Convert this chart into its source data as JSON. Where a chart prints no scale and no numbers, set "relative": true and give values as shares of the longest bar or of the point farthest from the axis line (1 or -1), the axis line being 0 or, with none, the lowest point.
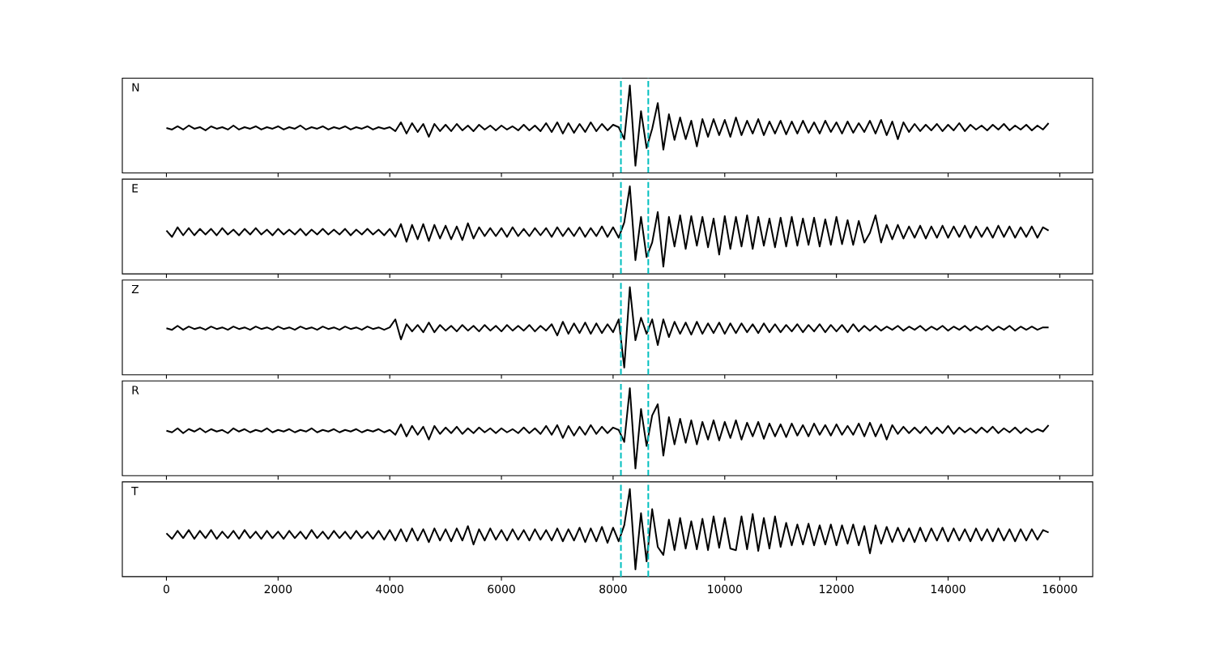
{
  "chart_data": [
    {
      "type": "line",
      "annotations": [
        "N"
      ],
      "relative": true,
      "tick_labels": false,
      "xlim": [
        -790,
        16590
      ],
      "xticks": [
        0,
        2000,
        4000,
        6000,
        8000,
        10000,
        12000,
        14000,
        16000
      ],
      "ref_lines": [
        {
          "axis": "x",
          "value": 8140,
          "color": "#00bfbf",
          "line_style": "dashed"
        },
        {
          "axis": "x",
          "value": 8630,
          "color": "#00bfbf",
          "line_style": "dashed"
        }
      ],
      "x": [
        0,
        100,
        200,
        300,
        400,
        500,
        600,
        700,
        800,
        900,
        1000,
        1100,
        1200,
        1300,
        1400,
        1500,
        1600,
        1700,
        1800,
        1900,
        2000,
        2100,
        2200,
        2300,
        2400,
        2500,
        2600,
        2700,
        2800,
        2900,
        3000,
        3100,
        3200,
        3300,
        3400,
        3500,
        3600,
        3700,
        3800,
        3900,
        4000,
        4100,
        4200,
        4300,
        4400,
        4500,
        4600,
        4700,
        4800,
        4900,
        5000,
        5100,
        5200,
        5300,
        5400,
        5500,
        5600,
        5700,
        5800,
        5900,
        6000,
        6100,
        6200,
        6300,
        6400,
        6500,
        6600,
        6700,
        6800,
        6900,
        7000,
        7100,
        7200,
        7300,
        7400,
        7500,
        7600,
        7700,
        7800,
        7900,
        8000,
        8100,
        8200,
        8300,
        8400,
        8500,
        8600,
        8700,
        8800,
        8900,
        9000,
        9100,
        9200,
        9300,
        9400,
        9500,
        9600,
        9700,
        9800,
        9900,
        10000,
        10100,
        10200,
        10300,
        10400,
        10500,
        10600,
        10700,
        10800,
        10900,
        11000,
        11100,
        11200,
        11300,
        11400,
        11500,
        11600,
        11700,
        11800,
        11900,
        12000,
        12100,
        12200,
        12300,
        12400,
        12500,
        12600,
        12700,
        12800,
        12900,
        13000,
        13100,
        13200,
        13300,
        13400,
        13500,
        13600,
        13700,
        13800,
        13900,
        14000,
        14100,
        14200,
        14300,
        14400,
        14500,
        14600,
        14700,
        14800,
        14900,
        15000,
        15100,
        15200,
        15300,
        15400,
        15500,
        15600,
        15700,
        15800
      ],
      "series": [
        {
          "color": "#000000",
          "values": [
            0.47,
            0.45,
            0.49,
            0.45,
            0.5,
            0.46,
            0.48,
            0.44,
            0.49,
            0.46,
            0.48,
            0.45,
            0.5,
            0.45,
            0.48,
            0.46,
            0.49,
            0.45,
            0.48,
            0.46,
            0.49,
            0.45,
            0.48,
            0.46,
            0.5,
            0.45,
            0.48,
            0.46,
            0.49,
            0.45,
            0.48,
            0.46,
            0.49,
            0.45,
            0.48,
            0.46,
            0.49,
            0.45,
            0.48,
            0.46,
            0.48,
            0.43,
            0.54,
            0.4,
            0.53,
            0.42,
            0.52,
            0.36,
            0.52,
            0.43,
            0.51,
            0.43,
            0.52,
            0.44,
            0.5,
            0.43,
            0.51,
            0.45,
            0.5,
            0.44,
            0.5,
            0.45,
            0.49,
            0.44,
            0.51,
            0.44,
            0.5,
            0.43,
            0.53,
            0.42,
            0.54,
            0.4,
            0.53,
            0.41,
            0.52,
            0.42,
            0.54,
            0.43,
            0.52,
            0.44,
            0.51,
            0.48,
            0.33,
            1.0,
            0.0,
            0.68,
            0.22,
            0.46,
            0.78,
            0.2,
            0.64,
            0.32,
            0.6,
            0.33,
            0.56,
            0.24,
            0.58,
            0.36,
            0.58,
            0.38,
            0.57,
            0.36,
            0.6,
            0.38,
            0.56,
            0.4,
            0.58,
            0.38,
            0.55,
            0.4,
            0.56,
            0.39,
            0.55,
            0.4,
            0.56,
            0.41,
            0.54,
            0.4,
            0.56,
            0.42,
            0.54,
            0.4,
            0.55,
            0.41,
            0.53,
            0.42,
            0.56,
            0.4,
            0.57,
            0.38,
            0.55,
            0.33,
            0.54,
            0.42,
            0.52,
            0.43,
            0.51,
            0.44,
            0.52,
            0.43,
            0.51,
            0.44,
            0.53,
            0.43,
            0.51,
            0.45,
            0.5,
            0.44,
            0.51,
            0.45,
            0.52,
            0.44,
            0.5,
            0.45,
            0.51,
            0.44,
            0.5,
            0.45,
            0.53
          ]
        }
      ]
    },
    {
      "type": "line",
      "annotations": [
        "E"
      ],
      "relative": true,
      "tick_labels": false,
      "xlim": [
        -790,
        16590
      ],
      "xticks": [
        0,
        2000,
        4000,
        6000,
        8000,
        10000,
        12000,
        14000,
        16000
      ],
      "ref_lines": [
        {
          "axis": "x",
          "value": 8140,
          "color": "#00bfbf",
          "line_style": "dashed"
        },
        {
          "axis": "x",
          "value": 8630,
          "color": "#00bfbf",
          "line_style": "dashed"
        }
      ],
      "x": [
        0,
        100,
        200,
        300,
        400,
        500,
        600,
        700,
        800,
        900,
        1000,
        1100,
        1200,
        1300,
        1400,
        1500,
        1600,
        1700,
        1800,
        1900,
        2000,
        2100,
        2200,
        2300,
        2400,
        2500,
        2600,
        2700,
        2800,
        2900,
        3000,
        3100,
        3200,
        3300,
        3400,
        3500,
        3600,
        3700,
        3800,
        3900,
        4000,
        4100,
        4200,
        4300,
        4400,
        4500,
        4600,
        4700,
        4800,
        4900,
        5000,
        5100,
        5200,
        5300,
        5400,
        5500,
        5600,
        5700,
        5800,
        5900,
        6000,
        6100,
        6200,
        6300,
        6400,
        6500,
        6600,
        6700,
        6800,
        6900,
        7000,
        7100,
        7200,
        7300,
        7400,
        7500,
        7600,
        7700,
        7800,
        7900,
        8000,
        8100,
        8200,
        8300,
        8400,
        8500,
        8600,
        8700,
        8800,
        8900,
        9000,
        9100,
        9200,
        9300,
        9400,
        9500,
        9600,
        9700,
        9800,
        9900,
        10000,
        10100,
        10200,
        10300,
        10400,
        10500,
        10600,
        10700,
        10800,
        10900,
        11000,
        11100,
        11200,
        11300,
        11400,
        11500,
        11600,
        11700,
        11800,
        11900,
        12000,
        12100,
        12200,
        12300,
        12400,
        12500,
        12600,
        12700,
        12800,
        12900,
        13000,
        13100,
        13200,
        13300,
        13400,
        13500,
        13600,
        13700,
        13800,
        13900,
        14000,
        14100,
        14200,
        14300,
        14400,
        14500,
        14600,
        14700,
        14800,
        14900,
        15000,
        15100,
        15200,
        15300,
        15400,
        15500,
        15600,
        15700,
        15800
      ],
      "series": [
        {
          "color": "#000000",
          "values": [
            0.45,
            0.37,
            0.49,
            0.39,
            0.48,
            0.39,
            0.47,
            0.4,
            0.47,
            0.39,
            0.48,
            0.4,
            0.46,
            0.39,
            0.47,
            0.4,
            0.48,
            0.4,
            0.46,
            0.39,
            0.47,
            0.4,
            0.46,
            0.4,
            0.47,
            0.39,
            0.46,
            0.4,
            0.47,
            0.4,
            0.46,
            0.4,
            0.47,
            0.39,
            0.46,
            0.4,
            0.47,
            0.4,
            0.46,
            0.39,
            0.47,
            0.37,
            0.53,
            0.31,
            0.52,
            0.34,
            0.53,
            0.32,
            0.52,
            0.35,
            0.51,
            0.34,
            0.5,
            0.33,
            0.54,
            0.35,
            0.49,
            0.38,
            0.48,
            0.38,
            0.48,
            0.37,
            0.49,
            0.38,
            0.47,
            0.38,
            0.48,
            0.39,
            0.48,
            0.37,
            0.49,
            0.38,
            0.48,
            0.38,
            0.49,
            0.37,
            0.48,
            0.38,
            0.5,
            0.37,
            0.49,
            0.36,
            0.55,
            1.0,
            0.08,
            0.62,
            0.12,
            0.3,
            0.68,
            0.0,
            0.62,
            0.25,
            0.64,
            0.22,
            0.63,
            0.26,
            0.62,
            0.24,
            0.6,
            0.15,
            0.63,
            0.22,
            0.62,
            0.25,
            0.64,
            0.22,
            0.62,
            0.26,
            0.6,
            0.24,
            0.61,
            0.25,
            0.62,
            0.26,
            0.6,
            0.27,
            0.61,
            0.25,
            0.59,
            0.27,
            0.62,
            0.28,
            0.58,
            0.27,
            0.57,
            0.3,
            0.42,
            0.64,
            0.3,
            0.52,
            0.34,
            0.52,
            0.35,
            0.5,
            0.36,
            0.51,
            0.35,
            0.5,
            0.36,
            0.51,
            0.36,
            0.5,
            0.37,
            0.51,
            0.36,
            0.5,
            0.37,
            0.49,
            0.36,
            0.51,
            0.37,
            0.5,
            0.36,
            0.49,
            0.37,
            0.5,
            0.36,
            0.49,
            0.45
          ]
        }
      ]
    },
    {
      "type": "line",
      "annotations": [
        "Z"
      ],
      "relative": true,
      "tick_labels": false,
      "xlim": [
        -790,
        16590
      ],
      "xticks": [
        0,
        2000,
        4000,
        6000,
        8000,
        10000,
        12000,
        14000,
        16000
      ],
      "ref_lines": [
        {
          "axis": "x",
          "value": 8140,
          "color": "#00bfbf",
          "line_style": "dashed"
        },
        {
          "axis": "x",
          "value": 8630,
          "color": "#00bfbf",
          "line_style": "dashed"
        }
      ],
      "x": [
        0,
        100,
        200,
        300,
        400,
        500,
        600,
        700,
        800,
        900,
        1000,
        1100,
        1200,
        1300,
        1400,
        1500,
        1600,
        1700,
        1800,
        1900,
        2000,
        2100,
        2200,
        2300,
        2400,
        2500,
        2600,
        2700,
        2800,
        2900,
        3000,
        3100,
        3200,
        3300,
        3400,
        3500,
        3600,
        3700,
        3800,
        3900,
        4000,
        4100,
        4200,
        4300,
        4400,
        4500,
        4600,
        4700,
        4800,
        4900,
        5000,
        5100,
        5200,
        5300,
        5400,
        5500,
        5600,
        5700,
        5800,
        5900,
        6000,
        6100,
        6200,
        6300,
        6400,
        6500,
        6600,
        6700,
        6800,
        6900,
        7000,
        7100,
        7200,
        7300,
        7400,
        7500,
        7600,
        7700,
        7800,
        7900,
        8000,
        8100,
        8200,
        8300,
        8400,
        8500,
        8600,
        8700,
        8800,
        8900,
        9000,
        9100,
        9200,
        9300,
        9400,
        9500,
        9600,
        9700,
        9800,
        9900,
        10000,
        10100,
        10200,
        10300,
        10400,
        10500,
        10600,
        10700,
        10800,
        10900,
        11000,
        11100,
        11200,
        11300,
        11400,
        11500,
        11600,
        11700,
        11800,
        11900,
        12000,
        12100,
        12200,
        12300,
        12400,
        12500,
        12600,
        12700,
        12800,
        12900,
        13000,
        13100,
        13200,
        13300,
        13400,
        13500,
        13600,
        13700,
        13800,
        13900,
        14000,
        14100,
        14200,
        14300,
        14400,
        14500,
        14600,
        14700,
        14800,
        14900,
        15000,
        15100,
        15200,
        15300,
        15400,
        15500,
        15600,
        15700,
        15800
      ],
      "series": [
        {
          "color": "#000000",
          "values": [
            0.49,
            0.47,
            0.52,
            0.47,
            0.51,
            0.48,
            0.5,
            0.47,
            0.51,
            0.48,
            0.5,
            0.47,
            0.51,
            0.48,
            0.5,
            0.47,
            0.51,
            0.48,
            0.5,
            0.47,
            0.51,
            0.48,
            0.5,
            0.47,
            0.51,
            0.48,
            0.5,
            0.47,
            0.51,
            0.48,
            0.5,
            0.47,
            0.51,
            0.48,
            0.5,
            0.47,
            0.51,
            0.48,
            0.5,
            0.47,
            0.5,
            0.6,
            0.35,
            0.54,
            0.45,
            0.53,
            0.44,
            0.56,
            0.44,
            0.53,
            0.46,
            0.52,
            0.45,
            0.53,
            0.46,
            0.52,
            0.45,
            0.53,
            0.46,
            0.52,
            0.45,
            0.53,
            0.46,
            0.52,
            0.46,
            0.53,
            0.45,
            0.52,
            0.46,
            0.54,
            0.4,
            0.57,
            0.42,
            0.55,
            0.43,
            0.56,
            0.42,
            0.55,
            0.43,
            0.54,
            0.44,
            0.6,
            0.0,
            1.0,
            0.34,
            0.62,
            0.42,
            0.6,
            0.28,
            0.6,
            0.38,
            0.57,
            0.42,
            0.56,
            0.41,
            0.57,
            0.42,
            0.55,
            0.43,
            0.56,
            0.42,
            0.55,
            0.43,
            0.55,
            0.44,
            0.54,
            0.43,
            0.55,
            0.44,
            0.54,
            0.44,
            0.53,
            0.45,
            0.54,
            0.44,
            0.53,
            0.45,
            0.54,
            0.44,
            0.53,
            0.45,
            0.53,
            0.44,
            0.54,
            0.45,
            0.52,
            0.46,
            0.52,
            0.46,
            0.51,
            0.47,
            0.52,
            0.46,
            0.51,
            0.47,
            0.52,
            0.46,
            0.51,
            0.47,
            0.52,
            0.46,
            0.51,
            0.47,
            0.52,
            0.46,
            0.51,
            0.47,
            0.52,
            0.46,
            0.51,
            0.47,
            0.52,
            0.46,
            0.51,
            0.47,
            0.51,
            0.47,
            0.5,
            0.5
          ]
        }
      ]
    },
    {
      "type": "line",
      "annotations": [
        "R"
      ],
      "relative": true,
      "tick_labels": false,
      "xlim": [
        -790,
        16590
      ],
      "xticks": [
        0,
        2000,
        4000,
        6000,
        8000,
        10000,
        12000,
        14000,
        16000
      ],
      "ref_lines": [
        {
          "axis": "x",
          "value": 8140,
          "color": "#00bfbf",
          "line_style": "dashed"
        },
        {
          "axis": "x",
          "value": 8630,
          "color": "#00bfbf",
          "line_style": "dashed"
        }
      ],
      "x": [
        0,
        100,
        200,
        300,
        400,
        500,
        600,
        700,
        800,
        900,
        1000,
        1100,
        1200,
        1300,
        1400,
        1500,
        1600,
        1700,
        1800,
        1900,
        2000,
        2100,
        2200,
        2300,
        2400,
        2500,
        2600,
        2700,
        2800,
        2900,
        3000,
        3100,
        3200,
        3300,
        3400,
        3500,
        3600,
        3700,
        3800,
        3900,
        4000,
        4100,
        4200,
        4300,
        4400,
        4500,
        4600,
        4700,
        4800,
        4900,
        5000,
        5100,
        5200,
        5300,
        5400,
        5500,
        5600,
        5700,
        5800,
        5900,
        6000,
        6100,
        6200,
        6300,
        6400,
        6500,
        6600,
        6700,
        6800,
        6900,
        7000,
        7100,
        7200,
        7300,
        7400,
        7500,
        7600,
        7700,
        7800,
        7900,
        8000,
        8100,
        8200,
        8300,
        8400,
        8500,
        8600,
        8700,
        8800,
        8900,
        9000,
        9100,
        9200,
        9300,
        9400,
        9500,
        9600,
        9700,
        9800,
        9900,
        10000,
        10100,
        10200,
        10300,
        10400,
        10500,
        10600,
        10700,
        10800,
        10900,
        11000,
        11100,
        11200,
        11300,
        11400,
        11500,
        11600,
        11700,
        11800,
        11900,
        12000,
        12100,
        12200,
        12300,
        12400,
        12500,
        12600,
        12700,
        12800,
        12900,
        13000,
        13100,
        13200,
        13300,
        13400,
        13500,
        13600,
        13700,
        13800,
        13900,
        14000,
        14100,
        14200,
        14300,
        14400,
        14500,
        14600,
        14700,
        14800,
        14900,
        15000,
        15100,
        15200,
        15300,
        15400,
        15500,
        15600,
        15700,
        15800
      ],
      "series": [
        {
          "color": "#000000",
          "values": [
            0.47,
            0.45,
            0.5,
            0.44,
            0.49,
            0.46,
            0.5,
            0.45,
            0.49,
            0.46,
            0.48,
            0.44,
            0.5,
            0.46,
            0.49,
            0.45,
            0.48,
            0.46,
            0.5,
            0.45,
            0.48,
            0.46,
            0.49,
            0.45,
            0.48,
            0.46,
            0.5,
            0.45,
            0.48,
            0.46,
            0.49,
            0.45,
            0.48,
            0.46,
            0.49,
            0.45,
            0.48,
            0.46,
            0.49,
            0.45,
            0.48,
            0.42,
            0.55,
            0.4,
            0.53,
            0.42,
            0.52,
            0.36,
            0.53,
            0.43,
            0.51,
            0.44,
            0.52,
            0.43,
            0.5,
            0.44,
            0.51,
            0.45,
            0.5,
            0.44,
            0.5,
            0.45,
            0.49,
            0.44,
            0.51,
            0.44,
            0.5,
            0.43,
            0.53,
            0.42,
            0.54,
            0.38,
            0.53,
            0.41,
            0.52,
            0.42,
            0.54,
            0.43,
            0.52,
            0.44,
            0.51,
            0.48,
            0.33,
            1.0,
            0.0,
            0.74,
            0.28,
            0.66,
            0.8,
            0.16,
            0.64,
            0.3,
            0.62,
            0.32,
            0.6,
            0.3,
            0.58,
            0.36,
            0.6,
            0.35,
            0.58,
            0.38,
            0.6,
            0.36,
            0.57,
            0.4,
            0.58,
            0.37,
            0.56,
            0.4,
            0.55,
            0.39,
            0.56,
            0.41,
            0.54,
            0.4,
            0.56,
            0.42,
            0.54,
            0.41,
            0.55,
            0.42,
            0.53,
            0.42,
            0.56,
            0.4,
            0.57,
            0.4,
            0.55,
            0.36,
            0.54,
            0.43,
            0.52,
            0.44,
            0.51,
            0.44,
            0.52,
            0.43,
            0.51,
            0.44,
            0.53,
            0.43,
            0.51,
            0.45,
            0.5,
            0.44,
            0.51,
            0.45,
            0.52,
            0.44,
            0.5,
            0.45,
            0.51,
            0.44,
            0.5,
            0.45,
            0.49,
            0.46,
            0.54
          ]
        }
      ]
    },
    {
      "type": "line",
      "annotations": [
        "T"
      ],
      "relative": true,
      "tick_labels": "x",
      "xlim": [
        -790,
        16590
      ],
      "xticks": [
        0,
        2000,
        4000,
        6000,
        8000,
        10000,
        12000,
        14000,
        16000
      ],
      "ref_lines": [
        {
          "axis": "x",
          "value": 8140,
          "color": "#00bfbf",
          "line_style": "dashed"
        },
        {
          "axis": "x",
          "value": 8630,
          "color": "#00bfbf",
          "line_style": "dashed"
        }
      ],
      "x": [
        0,
        100,
        200,
        300,
        400,
        500,
        600,
        700,
        800,
        900,
        1000,
        1100,
        1200,
        1300,
        1400,
        1500,
        1600,
        1700,
        1800,
        1900,
        2000,
        2100,
        2200,
        2300,
        2400,
        2500,
        2600,
        2700,
        2800,
        2900,
        3000,
        3100,
        3200,
        3300,
        3400,
        3500,
        3600,
        3700,
        3800,
        3900,
        4000,
        4100,
        4200,
        4300,
        4400,
        4500,
        4600,
        4700,
        4800,
        4900,
        5000,
        5100,
        5200,
        5300,
        5400,
        5500,
        5600,
        5700,
        5800,
        5900,
        6000,
        6100,
        6200,
        6300,
        6400,
        6500,
        6600,
        6700,
        6800,
        6900,
        7000,
        7100,
        7200,
        7300,
        7400,
        7500,
        7600,
        7700,
        7800,
        7900,
        8000,
        8100,
        8200,
        8300,
        8400,
        8500,
        8600,
        8700,
        8800,
        8900,
        9000,
        9100,
        9200,
        9300,
        9400,
        9500,
        9600,
        9700,
        9800,
        9900,
        10000,
        10100,
        10200,
        10300,
        10400,
        10500,
        10600,
        10700,
        10800,
        10900,
        11000,
        11100,
        11200,
        11300,
        11400,
        11500,
        11600,
        11700,
        11800,
        11900,
        12000,
        12100,
        12200,
        12300,
        12400,
        12500,
        12600,
        12700,
        12800,
        12900,
        13000,
        13100,
        13200,
        13300,
        13400,
        13500,
        13600,
        13700,
        13800,
        13900,
        14000,
        14100,
        14200,
        14300,
        14400,
        14500,
        14600,
        14700,
        14800,
        14900,
        15000,
        15100,
        15200,
        15300,
        15400,
        15500,
        15600,
        15700,
        15800
      ],
      "series": [
        {
          "color": "#000000",
          "values": [
            0.45,
            0.38,
            0.48,
            0.39,
            0.49,
            0.38,
            0.48,
            0.39,
            0.49,
            0.38,
            0.47,
            0.39,
            0.48,
            0.38,
            0.49,
            0.39,
            0.47,
            0.38,
            0.48,
            0.39,
            0.47,
            0.38,
            0.48,
            0.39,
            0.47,
            0.38,
            0.49,
            0.39,
            0.47,
            0.38,
            0.48,
            0.39,
            0.47,
            0.38,
            0.48,
            0.39,
            0.47,
            0.38,
            0.48,
            0.37,
            0.49,
            0.36,
            0.5,
            0.35,
            0.51,
            0.36,
            0.5,
            0.34,
            0.51,
            0.36,
            0.5,
            0.35,
            0.51,
            0.36,
            0.54,
            0.31,
            0.5,
            0.36,
            0.51,
            0.37,
            0.49,
            0.36,
            0.5,
            0.37,
            0.49,
            0.36,
            0.5,
            0.37,
            0.49,
            0.36,
            0.51,
            0.35,
            0.5,
            0.36,
            0.52,
            0.34,
            0.51,
            0.35,
            0.53,
            0.33,
            0.52,
            0.35,
            0.55,
            1.0,
            0.0,
            0.7,
            0.1,
            0.75,
            0.28,
            0.18,
            0.62,
            0.24,
            0.64,
            0.26,
            0.6,
            0.25,
            0.63,
            0.24,
            0.66,
            0.27,
            0.64,
            0.26,
            0.24,
            0.66,
            0.25,
            0.69,
            0.23,
            0.64,
            0.26,
            0.66,
            0.28,
            0.58,
            0.3,
            0.56,
            0.31,
            0.57,
            0.3,
            0.55,
            0.31,
            0.56,
            0.3,
            0.55,
            0.32,
            0.56,
            0.3,
            0.54,
            0.2,
            0.55,
            0.32,
            0.53,
            0.34,
            0.52,
            0.35,
            0.51,
            0.34,
            0.52,
            0.35,
            0.51,
            0.36,
            0.52,
            0.35,
            0.51,
            0.36,
            0.5,
            0.35,
            0.51,
            0.36,
            0.5,
            0.35,
            0.51,
            0.36,
            0.5,
            0.35,
            0.5,
            0.36,
            0.5,
            0.37,
            0.49,
            0.46
          ]
        }
      ]
    }
  ]
}
